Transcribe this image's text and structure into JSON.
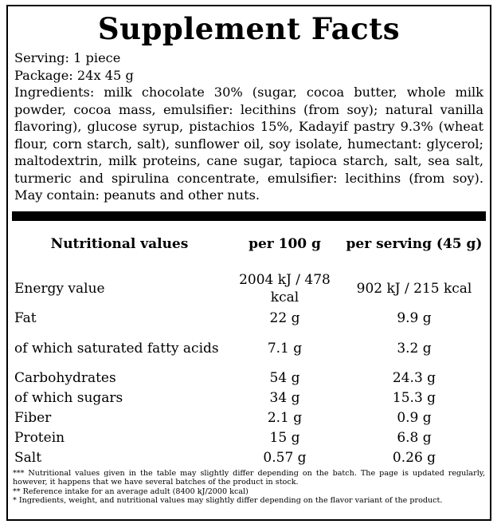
{
  "title": "Supplement Facts",
  "serving": "Serving: 1 piece",
  "package": "Package: 24x 45 g",
  "ingredients": "Ingredients: milk chocolate 30% (sugar, cocoa butter, whole milk powder, cocoa mass, emulsifier: lecithins (from soy); natural vanilla flavoring), glucose syrup, pistachios 15%, Kadayif pastry 9.3% (wheat flour, corn starch, salt), sunflower oil, soy isolate, humectant: glycerol; maltodextrin, milk proteins, cane sugar, tapioca starch, salt, sea salt, turmeric and spirulina concentrate, emulsifier: lecithins (from soy). May contain: peanuts and other nuts.",
  "table": {
    "headers": [
      "Nutritional values",
      "per 100 g",
      "per serving (45 g)"
    ],
    "rows": [
      {
        "name": "Energy value",
        "per100": "2004 kJ / 478 kcal",
        "serving": "902 kJ / 215 kcal"
      },
      {
        "name": "Fat",
        "per100": "22 g",
        "serving": "9.9 g"
      },
      {
        "name": "of which saturated fatty acids",
        "per100": "7.1 g",
        "serving": "3.2 g"
      },
      {
        "name": "Carbohydrates",
        "per100": "54 g",
        "serving": "24.3 g"
      },
      {
        "name": "of which sugars",
        "per100": "34 g",
        "serving": "15.3 g"
      },
      {
        "name": "Fiber",
        "per100": "2.1 g",
        "serving": "0.9 g"
      },
      {
        "name": "Protein",
        "per100": "15 g",
        "serving": "6.8 g"
      },
      {
        "name": "Salt",
        "per100": "0.57 g",
        "serving": "0.26 g"
      }
    ]
  },
  "notes": [
    "*** Nutritional values given in the table may slightly differ depending on the batch. The page is updated regularly, however, it happens that we have several batches of the product in stock.",
    "** Reference intake for an average adult (8400 kJ/2000 kcal)",
    "* Ingredients, weight, and nutritional values may slightly differ depending on the flavor variant of the product."
  ]
}
